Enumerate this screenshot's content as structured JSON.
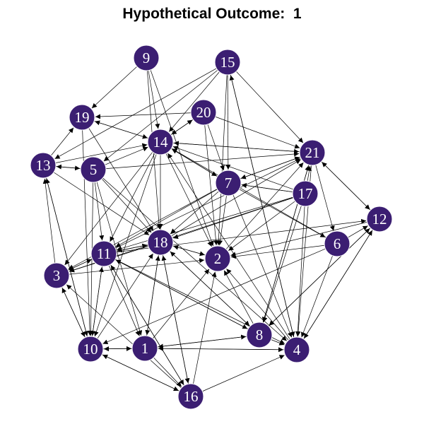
{
  "title": "Hypothetical Outcome:  1",
  "colors": {
    "node_fill": "#3b1e72",
    "node_stroke": "#ffffff",
    "edge": "#000000",
    "label": "#ffffff"
  },
  "nodes": [
    "1",
    "2",
    "3",
    "4",
    "5",
    "6",
    "7",
    "8",
    "9",
    "10",
    "11",
    "12",
    "13",
    "14",
    "15",
    "16",
    "17",
    "18",
    "19",
    "20",
    "21"
  ],
  "edges": [
    [
      "9",
      "19"
    ],
    [
      "9",
      "14"
    ],
    [
      "9",
      "18"
    ],
    [
      "9",
      "2"
    ],
    [
      "15",
      "14"
    ],
    [
      "15",
      "7"
    ],
    [
      "15",
      "2"
    ],
    [
      "15",
      "4"
    ],
    [
      "15",
      "13"
    ],
    [
      "15",
      "5"
    ],
    [
      "15",
      "21"
    ],
    [
      "20",
      "19"
    ],
    [
      "20",
      "14"
    ],
    [
      "20",
      "7"
    ],
    [
      "20",
      "21"
    ],
    [
      "20",
      "2"
    ],
    [
      "14",
      "20"
    ],
    [
      "19",
      "14"
    ],
    [
      "19",
      "18"
    ],
    [
      "19",
      "10"
    ],
    [
      "14",
      "19"
    ],
    [
      "13",
      "19"
    ],
    [
      "13",
      "14"
    ],
    [
      "13",
      "5"
    ],
    [
      "13",
      "10"
    ],
    [
      "13",
      "18"
    ],
    [
      "10",
      "13"
    ],
    [
      "5",
      "14"
    ],
    [
      "5",
      "13"
    ],
    [
      "5",
      "18"
    ],
    [
      "5",
      "11"
    ],
    [
      "5",
      "1"
    ],
    [
      "5",
      "10"
    ],
    [
      "5",
      "4"
    ],
    [
      "5",
      "21"
    ],
    [
      "14",
      "21"
    ],
    [
      "21",
      "14"
    ],
    [
      "14",
      "7"
    ],
    [
      "14",
      "18"
    ],
    [
      "14",
      "11"
    ],
    [
      "14",
      "3"
    ],
    [
      "14",
      "10"
    ],
    [
      "14",
      "2"
    ],
    [
      "7",
      "14"
    ],
    [
      "17",
      "14"
    ],
    [
      "6",
      "14"
    ],
    [
      "7",
      "21"
    ],
    [
      "21",
      "7"
    ],
    [
      "7",
      "18"
    ],
    [
      "7",
      "11"
    ],
    [
      "7",
      "2"
    ],
    [
      "7",
      "6"
    ],
    [
      "7",
      "4"
    ],
    [
      "7",
      "3"
    ],
    [
      "17",
      "7"
    ],
    [
      "17",
      "21"
    ],
    [
      "17",
      "11"
    ],
    [
      "17",
      "18"
    ],
    [
      "17",
      "2"
    ],
    [
      "17",
      "8"
    ],
    [
      "17",
      "4"
    ],
    [
      "17",
      "7"
    ],
    [
      "17",
      "3"
    ],
    [
      "21",
      "12"
    ],
    [
      "12",
      "21"
    ],
    [
      "21",
      "6"
    ],
    [
      "21",
      "8"
    ],
    [
      "21",
      "4"
    ],
    [
      "11",
      "21"
    ],
    [
      "18",
      "21"
    ],
    [
      "2",
      "21"
    ],
    [
      "12",
      "2"
    ],
    [
      "12",
      "4"
    ],
    [
      "12",
      "8"
    ],
    [
      "6",
      "12"
    ],
    [
      "11",
      "12"
    ],
    [
      "6",
      "2"
    ],
    [
      "6",
      "4"
    ],
    [
      "6",
      "10"
    ],
    [
      "18",
      "2"
    ],
    [
      "2",
      "18"
    ],
    [
      "18",
      "11"
    ],
    [
      "11",
      "18"
    ],
    [
      "18",
      "3"
    ],
    [
      "18",
      "1"
    ],
    [
      "1",
      "18"
    ],
    [
      "18",
      "16"
    ],
    [
      "16",
      "18"
    ],
    [
      "18",
      "8"
    ],
    [
      "11",
      "3"
    ],
    [
      "3",
      "11"
    ],
    [
      "11",
      "8"
    ],
    [
      "11",
      "4"
    ],
    [
      "11",
      "10"
    ],
    [
      "10",
      "11"
    ],
    [
      "11",
      "16"
    ],
    [
      "11",
      "1"
    ],
    [
      "3",
      "10"
    ],
    [
      "10",
      "3"
    ],
    [
      "3",
      "2"
    ],
    [
      "3",
      "13"
    ],
    [
      "10",
      "1"
    ],
    [
      "1",
      "10"
    ],
    [
      "10",
      "16"
    ],
    [
      "16",
      "10"
    ],
    [
      "10",
      "18"
    ],
    [
      "1",
      "8"
    ],
    [
      "8",
      "1"
    ],
    [
      "1",
      "4"
    ],
    [
      "4",
      "1"
    ],
    [
      "1",
      "16"
    ],
    [
      "1",
      "2"
    ],
    [
      "8",
      "4"
    ],
    [
      "8",
      "11"
    ],
    [
      "8",
      "2"
    ],
    [
      "8",
      "18"
    ],
    [
      "8",
      "12"
    ],
    [
      "8",
      "21"
    ],
    [
      "16",
      "4"
    ],
    [
      "16",
      "2"
    ],
    [
      "16",
      "3"
    ],
    [
      "16",
      "11"
    ],
    [
      "4",
      "12"
    ],
    [
      "4",
      "2"
    ],
    [
      "4",
      "14"
    ],
    [
      "4",
      "15"
    ]
  ]
}
